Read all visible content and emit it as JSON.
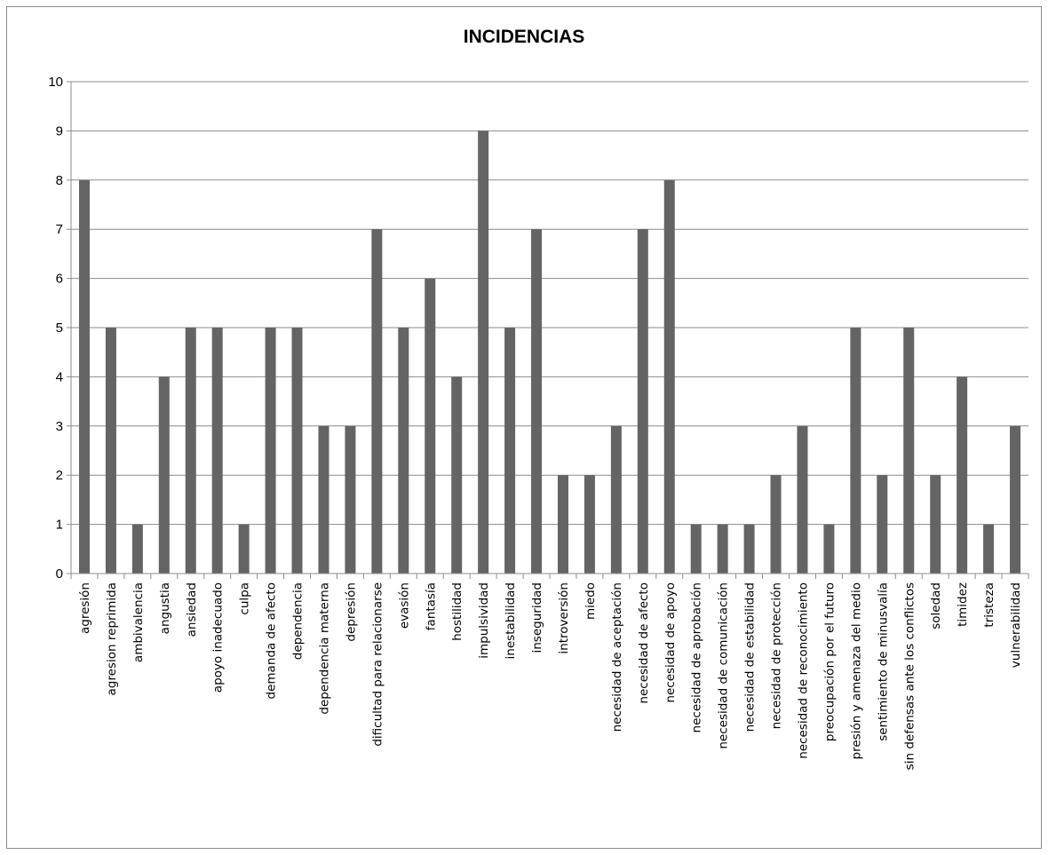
{
  "chart_data": {
    "type": "bar",
    "title": "INCIDENCIAS",
    "xlabel": "",
    "ylabel": "",
    "ylim": [
      0,
      10
    ],
    "yticks": [
      "0",
      "1",
      "2",
      "3",
      "4",
      "5",
      "6",
      "7",
      "8",
      "9",
      "10"
    ],
    "grid": true,
    "bar_color": "#646464",
    "categories": [
      "agresión",
      "agresion reprimida",
      "ambivalencia",
      "angustia",
      "ansiedad",
      "apoyo inadecuado",
      "culpa",
      "demanda de afecto",
      "dependencia",
      "dependencia materna",
      "depresión",
      "dificultad para relacionarse",
      "evasión",
      "fantasía",
      "hostilidad",
      "impulsividad",
      "inestabilidad",
      "inseguridad",
      "introversión",
      "miedo",
      "necesidad de aceptación",
      "necesidad de afecto",
      "necesidad de apoyo",
      "necesidad de aprobación",
      "necesidad de comunicación",
      "necesidad de estabilidad",
      "necesidad de protección",
      "necesidad de reconocimiento",
      "preocupación por el futuro",
      "presión y amenaza del medio",
      "sentimiento de minusvalía",
      "sin defensas ante los conflictos",
      "soledad",
      "timidez",
      "tristeza",
      "vulnerabilidad"
    ],
    "values": [
      8,
      5,
      1,
      4,
      5,
      5,
      1,
      5,
      5,
      3,
      3,
      7,
      5,
      6,
      4,
      9,
      5,
      7,
      2,
      2,
      3,
      7,
      8,
      1,
      1,
      1,
      2,
      3,
      1,
      5,
      2,
      5,
      2,
      4,
      1,
      3
    ]
  }
}
